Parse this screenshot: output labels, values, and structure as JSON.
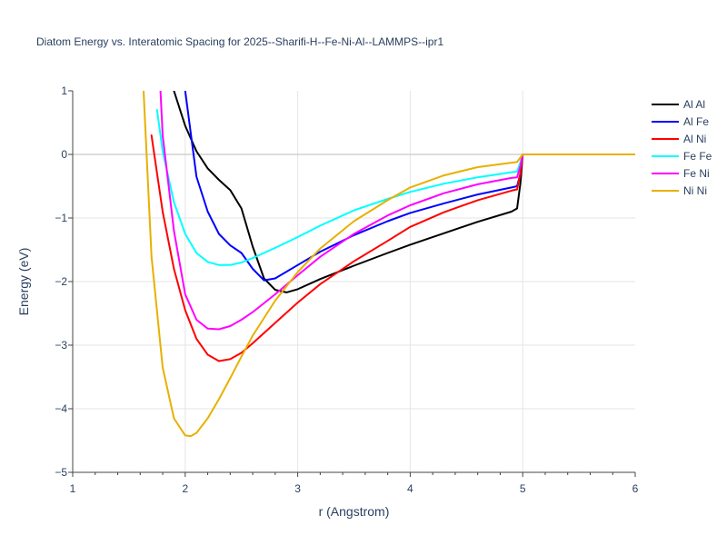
{
  "chart_data": {
    "type": "line",
    "title": "Diatom Energy vs. Interatomic Spacing for 2025--Sharifi-H--Fe-Ni-Al--LAMMPS--ipr1",
    "xlabel": "r (Angstrom)",
    "ylabel": "Energy (eV)",
    "xlim": [
      1,
      6
    ],
    "ylim": [
      -5,
      1
    ],
    "xticks": [
      1,
      2,
      3,
      4,
      5,
      6
    ],
    "yticks": [
      1,
      0,
      -1,
      -2,
      -3,
      -4,
      -5
    ],
    "xtick_labels": [
      "1",
      "2",
      "3",
      "4",
      "5",
      "6"
    ],
    "ytick_labels": [
      "1",
      "0",
      "−1",
      "−2",
      "−3",
      "−4",
      "−5"
    ],
    "grid": true,
    "legend_position": "top-right",
    "series": [
      {
        "name": "Al Al",
        "color": "#000000",
        "x": [
          1.9,
          2.0,
          2.1,
          2.2,
          2.3,
          2.4,
          2.5,
          2.6,
          2.7,
          2.8,
          2.9,
          3.0,
          3.2,
          3.5,
          3.8,
          4.0,
          4.3,
          4.6,
          4.9,
          4.95,
          4.98,
          5.0
        ],
        "y": [
          1.0,
          0.45,
          0.05,
          -0.22,
          -0.4,
          -0.56,
          -0.85,
          -1.45,
          -1.95,
          -2.13,
          -2.17,
          -2.12,
          -1.96,
          -1.75,
          -1.55,
          -1.42,
          -1.24,
          -1.06,
          -0.9,
          -0.85,
          -0.45,
          0.0
        ]
      },
      {
        "name": "Al Fe",
        "color": "#0000ff",
        "x": [
          2.0,
          2.1,
          2.2,
          2.3,
          2.4,
          2.5,
          2.6,
          2.7,
          2.8,
          3.0,
          3.2,
          3.5,
          3.8,
          4.0,
          4.3,
          4.6,
          4.9,
          4.95,
          4.98,
          5.0
        ],
        "y": [
          1.0,
          -0.35,
          -0.9,
          -1.25,
          -1.43,
          -1.55,
          -1.8,
          -1.98,
          -1.95,
          -1.74,
          -1.53,
          -1.27,
          -1.05,
          -0.92,
          -0.77,
          -0.63,
          -0.52,
          -0.5,
          -0.3,
          0.0
        ]
      },
      {
        "name": "Al Ni",
        "color": "#ff0000",
        "x": [
          1.7,
          1.8,
          1.9,
          2.0,
          2.1,
          2.2,
          2.3,
          2.4,
          2.5,
          2.6,
          2.8,
          3.0,
          3.2,
          3.5,
          3.8,
          4.0,
          4.3,
          4.6,
          4.9,
          4.95,
          4.98,
          5.0
        ],
        "y": [
          0.3,
          -0.9,
          -1.8,
          -2.45,
          -2.9,
          -3.15,
          -3.25,
          -3.22,
          -3.12,
          -2.97,
          -2.65,
          -2.33,
          -2.04,
          -1.68,
          -1.36,
          -1.14,
          -0.91,
          -0.72,
          -0.57,
          -0.55,
          -0.3,
          0.0
        ]
      },
      {
        "name": "Fe Fe",
        "color": "#00ffff",
        "x": [
          1.75,
          1.8,
          1.9,
          2.0,
          2.1,
          2.2,
          2.3,
          2.4,
          2.5,
          2.6,
          2.8,
          3.0,
          3.2,
          3.5,
          3.8,
          4.0,
          4.3,
          4.6,
          4.9,
          4.95,
          4.98,
          5.0
        ],
        "y": [
          0.7,
          0.05,
          -0.75,
          -1.25,
          -1.55,
          -1.69,
          -1.74,
          -1.74,
          -1.7,
          -1.63,
          -1.47,
          -1.3,
          -1.12,
          -0.88,
          -0.7,
          -0.59,
          -0.46,
          -0.36,
          -0.28,
          -0.27,
          -0.12,
          0.0
        ]
      },
      {
        "name": "Fe Ni",
        "color": "#ff00ff",
        "x": [
          1.78,
          1.8,
          1.9,
          2.0,
          2.1,
          2.2,
          2.3,
          2.4,
          2.5,
          2.6,
          2.8,
          3.0,
          3.2,
          3.5,
          3.8,
          4.0,
          4.3,
          4.6,
          4.9,
          4.95,
          4.98,
          5.0
        ],
        "y": [
          1.0,
          0.3,
          -1.2,
          -2.2,
          -2.6,
          -2.74,
          -2.75,
          -2.7,
          -2.6,
          -2.48,
          -2.2,
          -1.9,
          -1.61,
          -1.25,
          -0.96,
          -0.8,
          -0.61,
          -0.47,
          -0.37,
          -0.36,
          -0.18,
          0.0
        ]
      },
      {
        "name": "Ni Ni",
        "color": "#e8b000",
        "x": [
          1.63,
          1.7,
          1.8,
          1.9,
          2.0,
          2.05,
          2.1,
          2.2,
          2.3,
          2.4,
          2.5,
          2.6,
          2.8,
          3.0,
          3.2,
          3.5,
          3.8,
          4.0,
          4.3,
          4.6,
          4.9,
          4.95,
          5.0,
          6.0
        ],
        "y": [
          1.0,
          -1.6,
          -3.35,
          -4.15,
          -4.42,
          -4.43,
          -4.38,
          -4.15,
          -3.85,
          -3.52,
          -3.18,
          -2.85,
          -2.3,
          -1.85,
          -1.48,
          -1.05,
          -0.72,
          -0.52,
          -0.33,
          -0.2,
          -0.13,
          -0.12,
          0.0,
          0.0
        ]
      }
    ]
  }
}
